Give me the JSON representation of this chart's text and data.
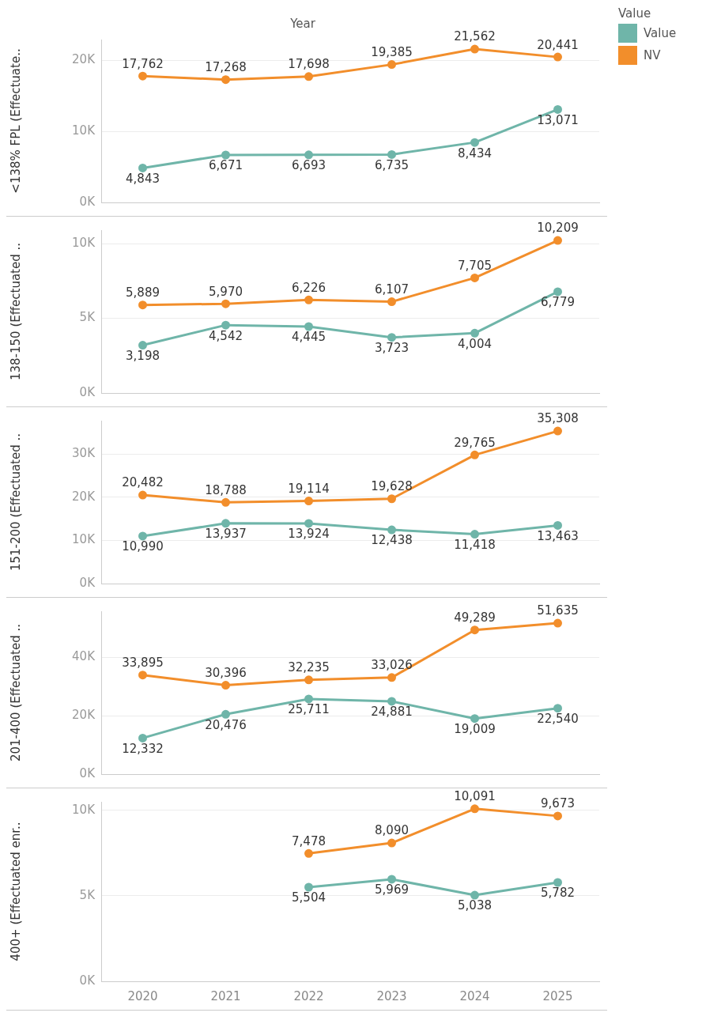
{
  "chart_data": [
    {
      "type": "line",
      "title": "Year",
      "ylabel": "<138% FPL (Effectuate..",
      "legend_title": "Value",
      "legend": "top right",
      "categories": [
        "2020",
        "2021",
        "2022",
        "2023",
        "2024",
        "2025"
      ],
      "ylim": [
        0,
        22900
      ],
      "yticks": [
        {
          "value": 0,
          "label": "0K"
        },
        {
          "value": 10000,
          "label": "10K"
        },
        {
          "value": 20000,
          "label": "20K"
        }
      ],
      "grid": "y",
      "marker": "circle",
      "tick_labels": "y",
      "series": [
        {
          "name": "Value",
          "color": "#6fb5a9",
          "values": [
            4843,
            6671,
            6693,
            6735,
            8434,
            13071
          ],
          "value_labels": [
            "4,843",
            "6,671",
            "6,693",
            "6,735",
            "8,434",
            "13,071"
          ]
        },
        {
          "name": "NV",
          "color": "#f28e2b",
          "values": [
            17762,
            17268,
            17698,
            19385,
            21562,
            20441
          ],
          "value_labels": [
            "17,762",
            "17,268",
            "17,698",
            "19,385",
            "21,562",
            "20,441"
          ]
        }
      ]
    },
    {
      "type": "line",
      "ylabel": "138-150 (Effectuated ..",
      "categories": [
        "2020",
        "2021",
        "2022",
        "2023",
        "2024",
        "2025"
      ],
      "ylim": [
        0,
        10900
      ],
      "yticks": [
        {
          "value": 0,
          "label": "0K"
        },
        {
          "value": 5000,
          "label": "5K"
        },
        {
          "value": 10000,
          "label": "10K"
        }
      ],
      "grid": "y",
      "marker": "circle",
      "tick_labels": "y",
      "series": [
        {
          "color": "#6fb5a9",
          "values": [
            3198,
            4542,
            4445,
            3723,
            4004,
            6779
          ],
          "value_labels": [
            "3,198",
            "4,542",
            "4,445",
            "3,723",
            "4,004",
            "6,779"
          ]
        },
        {
          "color": "#f28e2b",
          "values": [
            5889,
            5970,
            6226,
            6107,
            7705,
            10209
          ],
          "value_labels": [
            "5,889",
            "5,970",
            "6,226",
            "6,107",
            "7,705",
            "10,209"
          ]
        }
      ]
    },
    {
      "type": "line",
      "ylabel": "151-200 (Effectuated ..",
      "categories": [
        "2020",
        "2021",
        "2022",
        "2023",
        "2024",
        "2025"
      ],
      "ylim": [
        0,
        37700
      ],
      "yticks": [
        {
          "value": 0,
          "label": "0K"
        },
        {
          "value": 10000,
          "label": "10K"
        },
        {
          "value": 20000,
          "label": "20K"
        },
        {
          "value": 30000,
          "label": "30K"
        }
      ],
      "grid": "y",
      "marker": "circle",
      "tick_labels": "y",
      "series": [
        {
          "color": "#6fb5a9",
          "values": [
            10990,
            13937,
            13924,
            12438,
            11418,
            13463
          ],
          "value_labels": [
            "10,990",
            "13,937",
            "13,924",
            "12,438",
            "11,418",
            "13,463"
          ]
        },
        {
          "color": "#f28e2b",
          "values": [
            20482,
            18788,
            19114,
            19628,
            29765,
            35308
          ],
          "value_labels": [
            "20,482",
            "18,788",
            "19,114",
            "19,628",
            "29,765",
            "35,308"
          ]
        }
      ]
    },
    {
      "type": "line",
      "ylabel": "201-400 (Effectuated ..",
      "categories": [
        "2020",
        "2021",
        "2022",
        "2023",
        "2024",
        "2025"
      ],
      "ylim": [
        0,
        55700
      ],
      "yticks": [
        {
          "value": 0,
          "label": "0K"
        },
        {
          "value": 20000,
          "label": "20K"
        },
        {
          "value": 40000,
          "label": "40K"
        }
      ],
      "grid": "y",
      "marker": "circle",
      "tick_labels": "y",
      "series": [
        {
          "color": "#6fb5a9",
          "values": [
            12332,
            20476,
            25711,
            24881,
            19009,
            22540
          ],
          "value_labels": [
            "12,332",
            "20,476",
            "25,711",
            "24,881",
            "19,009",
            "22,540"
          ]
        },
        {
          "color": "#f28e2b",
          "values": [
            33895,
            30396,
            32235,
            33026,
            49289,
            51635
          ],
          "value_labels": [
            "33,895",
            "30,396",
            "32,235",
            "33,026",
            "49,289",
            "51,635"
          ]
        }
      ]
    },
    {
      "type": "line",
      "ylabel": "400+ (Effectuated enr..",
      "categories": [
        "2020",
        "2021",
        "2022",
        "2023",
        "2024",
        "2025"
      ],
      "ylim": [
        0,
        10500
      ],
      "yticks": [
        {
          "value": 0,
          "label": "0K"
        },
        {
          "value": 5000,
          "label": "5K"
        },
        {
          "value": 10000,
          "label": "10K"
        }
      ],
      "grid": "y",
      "marker": "circle",
      "series": [
        {
          "color": "#6fb5a9",
          "values": [
            null,
            null,
            5504,
            5969,
            5038,
            5782
          ],
          "value_labels": [
            null,
            null,
            "5,504",
            "5,969",
            "5,038",
            "5,782"
          ]
        },
        {
          "color": "#f28e2b",
          "values": [
            null,
            null,
            7478,
            8090,
            10091,
            9673
          ],
          "value_labels": [
            null,
            null,
            "7,478",
            "8,090",
            "10,091",
            "9,673"
          ]
        }
      ]
    }
  ]
}
